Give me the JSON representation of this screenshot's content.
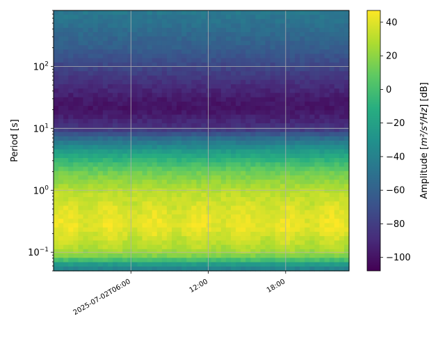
{
  "chart_data": {
    "type": "heatmap",
    "title": "",
    "ylabel": "Period [s]",
    "xlabel": "",
    "y_scale": "log",
    "y_ticks": [
      {
        "value": 0.1,
        "base": "10",
        "exp": "−1"
      },
      {
        "value": 1,
        "base": "10",
        "exp": "0"
      },
      {
        "value": 10,
        "base": "10",
        "exp": "1"
      },
      {
        "value": 100,
        "base": "10",
        "exp": "2"
      }
    ],
    "ylim": [
      0.05,
      800
    ],
    "x_range_hours": [
      0,
      27.5
    ],
    "x_ticks": [
      {
        "hour": 7.2,
        "label": "2025-07-02T06:00"
      },
      {
        "hour": 14.4,
        "label": "12:00"
      },
      {
        "hour": 21.6,
        "label": "18:00"
      }
    ],
    "grid": true,
    "colormap": "viridis",
    "colorbar": {
      "label_prefix": "Amplitude [",
      "label_math": "m²/s⁴/Hz",
      "label_suffix": "] [dB]",
      "range": [
        -108,
        47
      ],
      "ticks": [
        40,
        20,
        0,
        -20,
        -40,
        -60,
        -80,
        -100
      ]
    },
    "amplitude_profile_db": [
      {
        "period": 0.05,
        "db": -45
      },
      {
        "period": 0.063,
        "db": -25
      },
      {
        "period": 0.08,
        "db": 10
      },
      {
        "period": 0.1,
        "db": 25
      },
      {
        "period": 0.15,
        "db": 33
      },
      {
        "period": 0.22,
        "db": 40
      },
      {
        "period": 0.3,
        "db": 42
      },
      {
        "period": 0.5,
        "db": 38
      },
      {
        "period": 1,
        "db": 30
      },
      {
        "period": 2,
        "db": 12
      },
      {
        "period": 4,
        "db": -20
      },
      {
        "period": 7,
        "db": -55
      },
      {
        "period": 10,
        "db": -85
      },
      {
        "period": 20,
        "db": -100
      },
      {
        "period": 30,
        "db": -97
      },
      {
        "period": 60,
        "db": -85
      },
      {
        "period": 100,
        "db": -75
      },
      {
        "period": 200,
        "db": -62
      },
      {
        "period": 500,
        "db": -50
      },
      {
        "period": 800,
        "db": -45
      }
    ]
  }
}
